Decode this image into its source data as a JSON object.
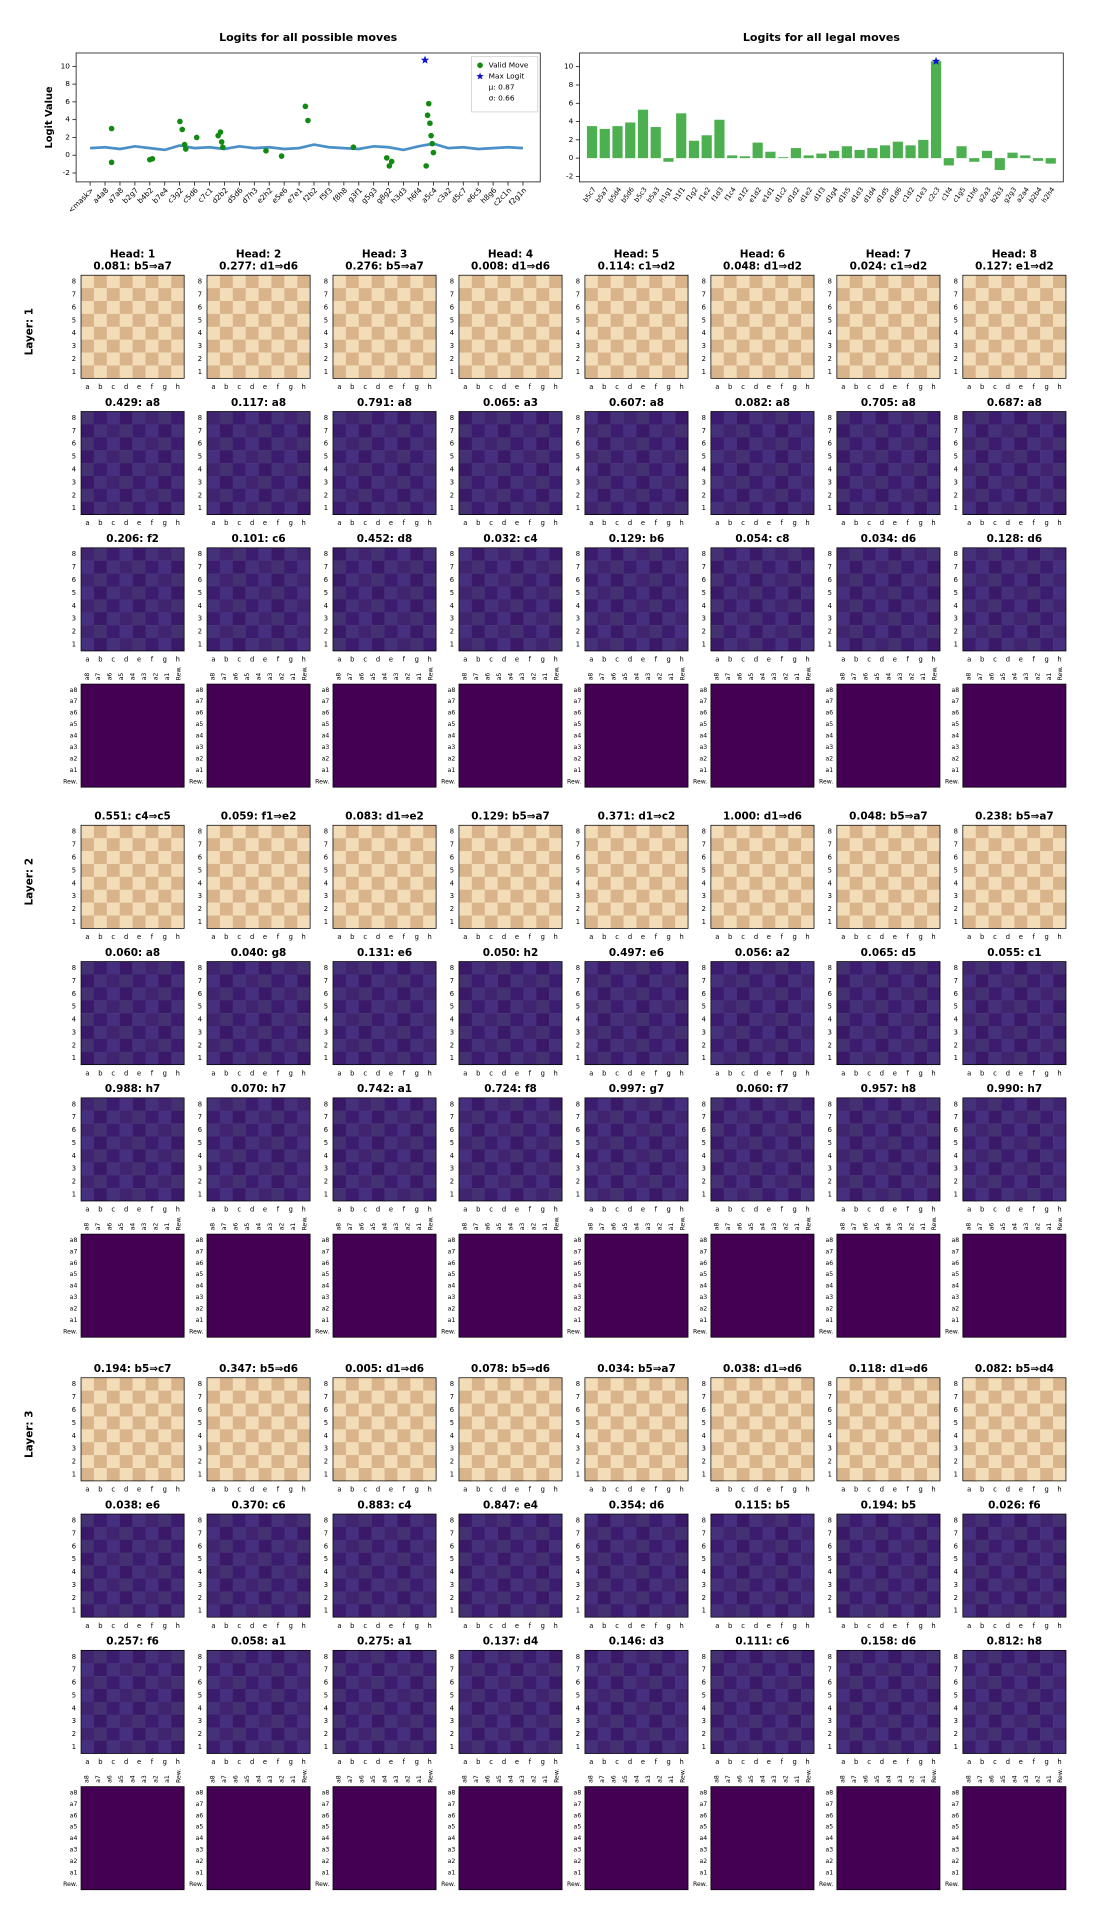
{
  "chart_data": [
    {
      "type": "line",
      "title": "Logits for all possible moves",
      "ylabel": "Logit Value",
      "xlim": [
        -60,
        1930
      ],
      "ylim": [
        -3,
        11.5
      ],
      "yticks": [
        -2,
        0,
        2,
        4,
        6,
        8,
        10
      ],
      "xticks": [
        {
          "value": 0,
          "label": "<mask>"
        },
        {
          "value": 64,
          "label": "a4a8"
        },
        {
          "value": 128,
          "label": "a7a8"
        },
        {
          "value": 192,
          "label": "b2g7"
        },
        {
          "value": 256,
          "label": "b4b2"
        },
        {
          "value": 320,
          "label": "b7e4"
        },
        {
          "value": 384,
          "label": "c3g2"
        },
        {
          "value": 448,
          "label": "c5d6"
        },
        {
          "value": 512,
          "label": "c7c1"
        },
        {
          "value": 576,
          "label": "d2b2"
        },
        {
          "value": 640,
          "label": "d5d6"
        },
        {
          "value": 704,
          "label": "d7h3"
        },
        {
          "value": 768,
          "label": "e2h2"
        },
        {
          "value": 832,
          "label": "e5e6"
        },
        {
          "value": 896,
          "label": "e7e1"
        },
        {
          "value": 960,
          "label": "f2b2"
        },
        {
          "value": 1024,
          "label": "f5f3"
        },
        {
          "value": 1088,
          "label": "f8h8"
        },
        {
          "value": 1152,
          "label": "g3f1"
        },
        {
          "value": 1216,
          "label": "g5g3"
        },
        {
          "value": 1280,
          "label": "g8g2"
        },
        {
          "value": 1344,
          "label": "h3d3"
        },
        {
          "value": 1408,
          "label": "h6f4"
        },
        {
          "value": 1472,
          "label": "a5c4"
        },
        {
          "value": 1536,
          "label": "c3a2"
        },
        {
          "value": 1600,
          "label": "d5c7"
        },
        {
          "value": 1664,
          "label": "e6c5"
        },
        {
          "value": 1728,
          "label": "h8g6"
        },
        {
          "value": 1792,
          "label": "c2c1n"
        },
        {
          "value": 1856,
          "label": "f2g1n"
        }
      ],
      "series": [
        {
          "color": "#4a90c8",
          "x": [
            0,
            64,
            128,
            192,
            256,
            320,
            384,
            448,
            512,
            576,
            640,
            704,
            768,
            832,
            896,
            960,
            1024,
            1088,
            1152,
            1216,
            1280,
            1344,
            1408,
            1472,
            1536,
            1600,
            1664,
            1728,
            1792,
            1856
          ],
          "values": [
            0.8,
            0.9,
            0.7,
            1.0,
            0.8,
            0.6,
            1.1,
            0.8,
            0.9,
            0.7,
            1.0,
            0.8,
            0.9,
            0.7,
            0.8,
            1.2,
            0.9,
            0.8,
            0.7,
            1.0,
            0.9,
            0.6,
            1.0,
            1.3,
            0.8,
            0.9,
            0.7,
            0.8,
            0.9,
            0.8
          ]
        },
        {
          "name": "Valid Move",
          "color": "#128a12",
          "marker": "circle",
          "x": [
            92,
            92,
            256,
            267,
            385,
            395,
            405,
            410,
            457,
            549,
            559,
            564,
            569,
            754,
            821,
            923,
            934,
            1129,
            1272,
            1283,
            1293,
            1441,
            1447,
            1452,
            1457,
            1462,
            1467,
            1472
          ],
          "values": [
            3.0,
            -0.8,
            -0.5,
            -0.4,
            3.8,
            2.9,
            1.2,
            0.7,
            2.0,
            2.2,
            2.6,
            1.5,
            0.9,
            0.5,
            -0.1,
            5.5,
            3.9,
            0.9,
            -0.3,
            -1.2,
            -0.7,
            -1.2,
            4.5,
            5.8,
            3.6,
            2.2,
            1.3,
            0.3
          ]
        },
        {
          "name": "Max Logit",
          "color": "#1010d0",
          "marker": "star",
          "x": [
            1436
          ],
          "values": [
            10.7
          ]
        }
      ],
      "annotations": [
        "μ: 0.87",
        "σ: 0.66"
      ]
    },
    {
      "type": "bar",
      "title": "Logits for all legal moves",
      "color": "#4caf50",
      "star_color": "#1010d0",
      "ylim": [
        -2.6,
        11.5
      ],
      "yticks": [
        -2,
        0,
        2,
        4,
        6,
        8,
        10
      ],
      "categories": [
        "b5c7",
        "b5a7",
        "b5d4",
        "b5d6",
        "b5c3",
        "b5a3",
        "h1g1",
        "h1f1",
        "f1g2",
        "f1e2",
        "f1d3",
        "f1c4",
        "e1f2",
        "e1d2",
        "e1d1",
        "d1c2",
        "d1d2",
        "d1e2",
        "d1f3",
        "d1g4",
        "d1h5",
        "d1d3",
        "d1d4",
        "d1d5",
        "d1d6",
        "c1d2",
        "c1e3",
        "c2c3",
        "c1f4",
        "c1g5",
        "c1h6",
        "a2a3",
        "b2b3",
        "g2g3",
        "a2a4",
        "b2b4",
        "h2h4"
      ],
      "values": [
        3.5,
        3.2,
        3.5,
        3.9,
        5.3,
        3.4,
        -0.4,
        4.9,
        1.9,
        2.5,
        4.2,
        0.3,
        0.2,
        1.7,
        0.7,
        0.1,
        1.1,
        0.3,
        0.5,
        0.8,
        1.3,
        0.9,
        1.1,
        1.4,
        1.8,
        1.4,
        2.0,
        10.6,
        -0.8,
        1.3,
        -0.4,
        0.8,
        -1.3,
        0.6,
        0.3,
        -0.3,
        -0.6
      ]
    }
  ],
  "panels": {
    "heads": [
      "Head: 1",
      "Head: 2",
      "Head: 3",
      "Head: 4",
      "Head: 5",
      "Head: 6",
      "Head: 7",
      "Head: 8"
    ],
    "files": [
      "a",
      "b",
      "c",
      "d",
      "e",
      "f",
      "g",
      "h"
    ],
    "ranks": [
      "8",
      "7",
      "6",
      "5",
      "4",
      "3",
      "2",
      "1"
    ],
    "attn_labels": [
      "a8",
      "a7",
      "a6",
      "a5",
      "a4",
      "a3",
      "a2",
      "a1",
      "Rew."
    ],
    "highlight_color": "#e41a1c",
    "layers": [
      {
        "label": "Layer: 1",
        "rows": [
          {
            "highlight": 1,
            "titles": [
              "0.081: b5⇒a7",
              "0.277: d1⇒d6",
              "0.276: b5⇒a7",
              "0.008: d1⇒d6",
              "0.114: c1⇒d2",
              "0.048: d1⇒d2",
              "0.024: c1⇒d2",
              "0.127: e1⇒d2"
            ]
          },
          {
            "highlight": 2,
            "titles": [
              "0.429: a8",
              "0.117: a8",
              "0.791: a8",
              "0.065: a3",
              "0.607: a8",
              "0.082: a8",
              "0.705: a8",
              "0.687: a8"
            ]
          },
          {
            "highlight": 2,
            "titles": [
              "0.206: f2",
              "0.101: c6",
              "0.452: d8",
              "0.032: c4",
              "0.129: b6",
              "0.054: c8",
              "0.034: d6",
              "0.128: d6"
            ]
          }
        ]
      },
      {
        "label": "Layer: 2",
        "rows": [
          {
            "highlight": 5,
            "titles": [
              "0.551: c4⇒c5",
              "0.059: f1⇒e2",
              "0.083: d1⇒e2",
              "0.129: b5⇒a7",
              "0.371: d1⇒c2",
              "1.000: d1⇒d6",
              "0.048: b5⇒a7",
              "0.238: b5⇒a7"
            ]
          },
          {
            "highlight": 4,
            "titles": [
              "0.060: a8",
              "0.040: g8",
              "0.131: e6",
              "0.050: h2",
              "0.497: e6",
              "0.056: a2",
              "0.065: d5",
              "0.055: c1"
            ]
          },
          {
            "highlight": 4,
            "titles": [
              "0.988: h7",
              "0.070: h7",
              "0.742: a1",
              "0.724: f8",
              "0.997: g7",
              "0.060: f7",
              "0.957: h8",
              "0.990: h7"
            ]
          }
        ]
      },
      {
        "label": "Layer: 3",
        "rows": [
          {
            "highlight": 1,
            "titles": [
              "0.194: b5⇒c7",
              "0.347: b5⇒d6",
              "0.005: d1⇒d6",
              "0.078: b5⇒d6",
              "0.034: b5⇒a7",
              "0.038: d1⇒d6",
              "0.118: d1⇒d6",
              "0.082: b5⇒d4"
            ]
          },
          {
            "highlight": 2,
            "titles": [
              "0.038: e6",
              "0.370: c6",
              "0.883: c4",
              "0.847: e4",
              "0.354: d6",
              "0.115: b5",
              "0.194: b5",
              "0.026: f6"
            ]
          },
          {
            "highlight": 7,
            "titles": [
              "0.257: f6",
              "0.058: a1",
              "0.275: a1",
              "0.137: d4",
              "0.146: d3",
              "0.111: c6",
              "0.158: d6",
              "0.812: h8"
            ]
          }
        ]
      }
    ]
  }
}
